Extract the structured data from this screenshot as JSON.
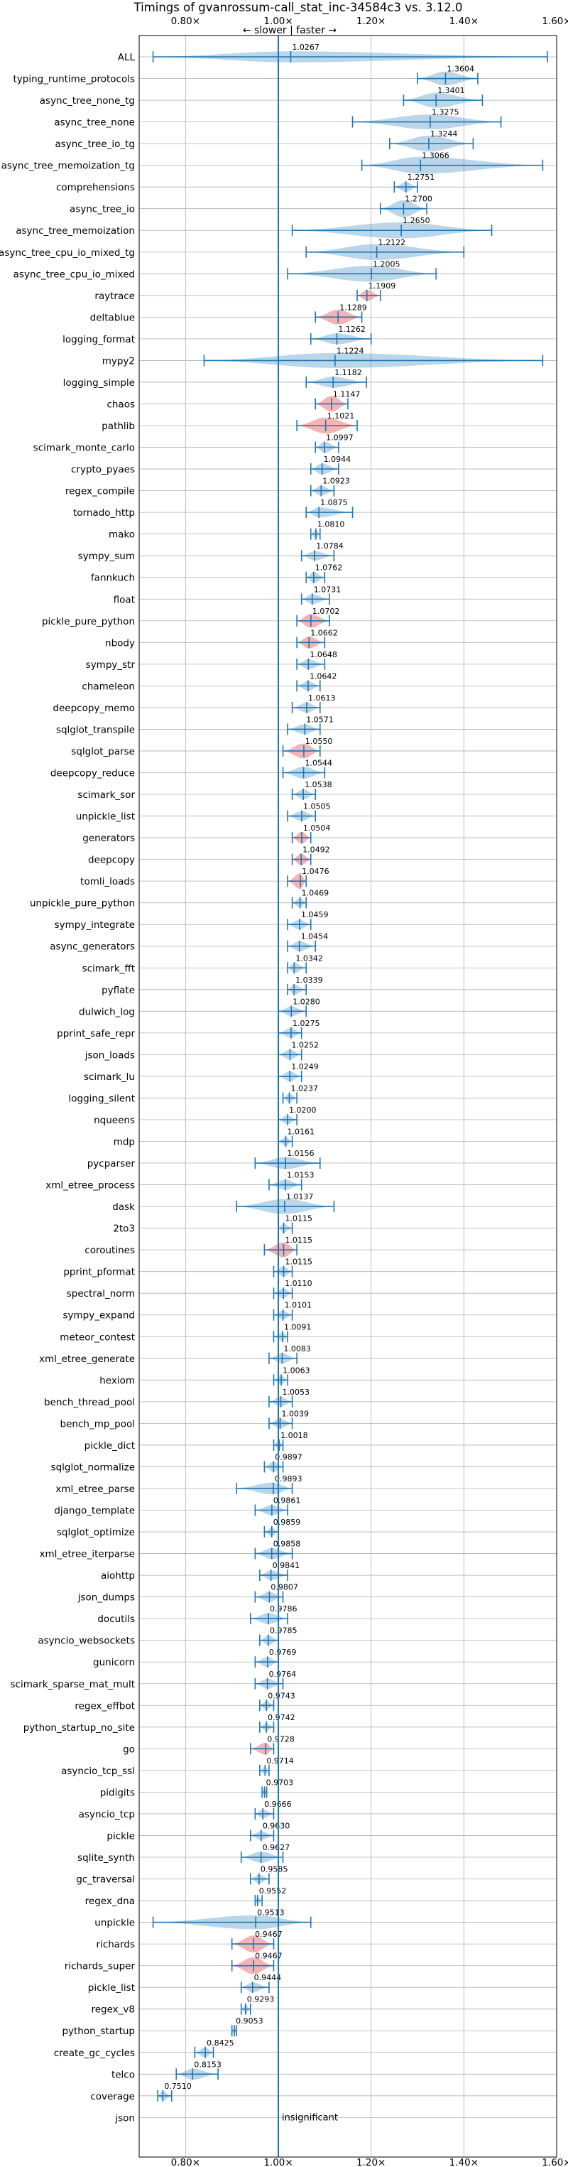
{
  "chart_data": {
    "type": "violin",
    "title": "Timings of gvanrossum-call_stat_inc-34584c3 vs. 3.12.0",
    "direction_label": "← slower | faster →",
    "xlim": [
      0.7,
      1.6
    ],
    "x_ticks": [
      0.8,
      1.0,
      1.2,
      1.4,
      1.6
    ],
    "x_tick_labels": [
      "0.80×",
      "1.00×",
      "1.20×",
      "1.40×",
      "1.60×"
    ],
    "reference_line": 1.0,
    "grid": true,
    "normal_color": "#1f77b4",
    "highlight_color": "#f08080",
    "benchmarks": [
      {
        "name": "ALL",
        "value": "1.0267",
        "mean": 1.0267,
        "min": 0.73,
        "max": 1.58,
        "width": 0.55,
        "highlight": false
      },
      {
        "name": "typing_runtime_protocols",
        "value": "1.3604",
        "mean": 1.3604,
        "min": 1.3,
        "max": 1.43,
        "width": 0.7,
        "highlight": false
      },
      {
        "name": "async_tree_none_tg",
        "value": "1.3401",
        "mean": 1.3401,
        "min": 1.27,
        "max": 1.44,
        "width": 0.75,
        "highlight": false
      },
      {
        "name": "async_tree_none",
        "value": "1.3275",
        "mean": 1.3275,
        "min": 1.16,
        "max": 1.48,
        "width": 0.75,
        "highlight": false
      },
      {
        "name": "async_tree_io_tg",
        "value": "1.3244",
        "mean": 1.3244,
        "min": 1.24,
        "max": 1.42,
        "width": 0.8,
        "highlight": false
      },
      {
        "name": "async_tree_memoization_tg",
        "value": "1.3066",
        "mean": 1.3066,
        "min": 1.18,
        "max": 1.57,
        "width": 0.85,
        "highlight": false
      },
      {
        "name": "comprehensions",
        "value": "1.2751",
        "mean": 1.2751,
        "min": 1.25,
        "max": 1.3,
        "width": 0.5,
        "highlight": false
      },
      {
        "name": "async_tree_io",
        "value": "1.2700",
        "mean": 1.27,
        "min": 1.22,
        "max": 1.32,
        "width": 0.85,
        "highlight": false
      },
      {
        "name": "async_tree_memoization",
        "value": "1.2650",
        "mean": 1.265,
        "min": 1.03,
        "max": 1.46,
        "width": 0.8,
        "highlight": false
      },
      {
        "name": "async_tree_cpu_io_mixed_tg",
        "value": "1.2122",
        "mean": 1.2122,
        "min": 1.06,
        "max": 1.4,
        "width": 0.8,
        "highlight": false
      },
      {
        "name": "async_tree_cpu_io_mixed",
        "value": "1.2005",
        "mean": 1.2005,
        "min": 1.02,
        "max": 1.34,
        "width": 0.8,
        "highlight": false
      },
      {
        "name": "raytrace",
        "value": "1.1909",
        "mean": 1.1909,
        "min": 1.17,
        "max": 1.22,
        "width": 0.55,
        "highlight": true
      },
      {
        "name": "deltablue",
        "value": "1.1289",
        "mean": 1.1289,
        "min": 1.08,
        "max": 1.18,
        "width": 0.75,
        "highlight": true
      },
      {
        "name": "logging_format",
        "value": "1.1262",
        "mean": 1.1262,
        "min": 1.07,
        "max": 1.2,
        "width": 0.55,
        "highlight": false
      },
      {
        "name": "mypy2",
        "value": "1.1224",
        "mean": 1.1224,
        "min": 0.84,
        "max": 1.57,
        "width": 0.75,
        "highlight": false
      },
      {
        "name": "logging_simple",
        "value": "1.1182",
        "mean": 1.1182,
        "min": 1.06,
        "max": 1.19,
        "width": 0.55,
        "highlight": false
      },
      {
        "name": "chaos",
        "value": "1.1147",
        "mean": 1.1147,
        "min": 1.08,
        "max": 1.15,
        "width": 0.8,
        "highlight": true
      },
      {
        "name": "pathlib",
        "value": "1.1021",
        "mean": 1.1021,
        "min": 1.04,
        "max": 1.17,
        "width": 0.8,
        "highlight": true
      },
      {
        "name": "scimark_monte_carlo",
        "value": "1.0997",
        "mean": 1.0997,
        "min": 1.08,
        "max": 1.13,
        "width": 0.55,
        "highlight": false
      },
      {
        "name": "crypto_pyaes",
        "value": "1.0944",
        "mean": 1.0944,
        "min": 1.07,
        "max": 1.13,
        "width": 0.55,
        "highlight": false
      },
      {
        "name": "regex_compile",
        "value": "1.0923",
        "mean": 1.0923,
        "min": 1.07,
        "max": 1.12,
        "width": 0.5,
        "highlight": false
      },
      {
        "name": "tornado_http",
        "value": "1.0875",
        "mean": 1.0875,
        "min": 1.06,
        "max": 1.16,
        "width": 0.5,
        "highlight": false
      },
      {
        "name": "mako",
        "value": "1.0810",
        "mean": 1.081,
        "min": 1.07,
        "max": 1.09,
        "width": 0.45,
        "highlight": false
      },
      {
        "name": "sympy_sum",
        "value": "1.0784",
        "mean": 1.0784,
        "min": 1.05,
        "max": 1.12,
        "width": 0.45,
        "highlight": false
      },
      {
        "name": "fannkuch",
        "value": "1.0762",
        "mean": 1.0762,
        "min": 1.06,
        "max": 1.1,
        "width": 0.55,
        "highlight": false
      },
      {
        "name": "float",
        "value": "1.0731",
        "mean": 1.0731,
        "min": 1.05,
        "max": 1.11,
        "width": 0.5,
        "highlight": false
      },
      {
        "name": "pickle_pure_python",
        "value": "1.0702",
        "mean": 1.0702,
        "min": 1.04,
        "max": 1.11,
        "width": 0.7,
        "highlight": true
      },
      {
        "name": "nbody",
        "value": "1.0662",
        "mean": 1.0662,
        "min": 1.04,
        "max": 1.1,
        "width": 0.6,
        "highlight": true
      },
      {
        "name": "sympy_str",
        "value": "1.0648",
        "mean": 1.0648,
        "min": 1.04,
        "max": 1.1,
        "width": 0.5,
        "highlight": false
      },
      {
        "name": "chameleon",
        "value": "1.0642",
        "mean": 1.0642,
        "min": 1.04,
        "max": 1.09,
        "width": 0.5,
        "highlight": false
      },
      {
        "name": "deepcopy_memo",
        "value": "1.0613",
        "mean": 1.0613,
        "min": 1.03,
        "max": 1.09,
        "width": 0.5,
        "highlight": false
      },
      {
        "name": "sqlglot_transpile",
        "value": "1.0571",
        "mean": 1.0571,
        "min": 1.02,
        "max": 1.09,
        "width": 0.5,
        "highlight": false
      },
      {
        "name": "sqlglot_parse",
        "value": "1.0550",
        "mean": 1.055,
        "min": 1.01,
        "max": 1.09,
        "width": 0.75,
        "highlight": true
      },
      {
        "name": "deepcopy_reduce",
        "value": "1.0544",
        "mean": 1.0544,
        "min": 1.01,
        "max": 1.1,
        "width": 0.6,
        "highlight": false
      },
      {
        "name": "scimark_sor",
        "value": "1.0538",
        "mean": 1.0538,
        "min": 1.03,
        "max": 1.08,
        "width": 0.5,
        "highlight": false
      },
      {
        "name": "unpickle_list",
        "value": "1.0505",
        "mean": 1.0505,
        "min": 1.02,
        "max": 1.08,
        "width": 0.5,
        "highlight": false
      },
      {
        "name": "generators",
        "value": "1.0504",
        "mean": 1.0504,
        "min": 1.03,
        "max": 1.07,
        "width": 0.6,
        "highlight": true
      },
      {
        "name": "deepcopy",
        "value": "1.0492",
        "mean": 1.0492,
        "min": 1.03,
        "max": 1.07,
        "width": 0.6,
        "highlight": true
      },
      {
        "name": "tomli_loads",
        "value": "1.0476",
        "mean": 1.0476,
        "min": 1.02,
        "max": 1.06,
        "width": 0.8,
        "highlight": true
      },
      {
        "name": "unpickle_pure_python",
        "value": "1.0469",
        "mean": 1.0469,
        "min": 1.03,
        "max": 1.06,
        "width": 0.5,
        "highlight": false
      },
      {
        "name": "sympy_integrate",
        "value": "1.0459",
        "mean": 1.0459,
        "min": 1.02,
        "max": 1.07,
        "width": 0.5,
        "highlight": false
      },
      {
        "name": "async_generators",
        "value": "1.0454",
        "mean": 1.0454,
        "min": 1.02,
        "max": 1.08,
        "width": 0.5,
        "highlight": false
      },
      {
        "name": "scimark_fft",
        "value": "1.0342",
        "mean": 1.0342,
        "min": 1.02,
        "max": 1.06,
        "width": 0.5,
        "highlight": false
      },
      {
        "name": "pyflate",
        "value": "1.0339",
        "mean": 1.0339,
        "min": 1.02,
        "max": 1.06,
        "width": 0.5,
        "highlight": false
      },
      {
        "name": "dulwich_log",
        "value": "1.0280",
        "mean": 1.028,
        "min": 1.0,
        "max": 1.06,
        "width": 0.5,
        "highlight": false
      },
      {
        "name": "pprint_safe_repr",
        "value": "1.0275",
        "mean": 1.0275,
        "min": 1.0,
        "max": 1.05,
        "width": 0.5,
        "highlight": false
      },
      {
        "name": "json_loads",
        "value": "1.0252",
        "mean": 1.0252,
        "min": 1.0,
        "max": 1.05,
        "width": 0.5,
        "highlight": false
      },
      {
        "name": "scimark_lu",
        "value": "1.0249",
        "mean": 1.0249,
        "min": 1.0,
        "max": 1.05,
        "width": 0.5,
        "highlight": false
      },
      {
        "name": "logging_silent",
        "value": "1.0237",
        "mean": 1.0237,
        "min": 1.01,
        "max": 1.04,
        "width": 0.45,
        "highlight": false
      },
      {
        "name": "nqueens",
        "value": "1.0200",
        "mean": 1.02,
        "min": 1.0,
        "max": 1.04,
        "width": 0.45,
        "highlight": false
      },
      {
        "name": "mdp",
        "value": "1.0161",
        "mean": 1.0161,
        "min": 1.0,
        "max": 1.03,
        "width": 0.45,
        "highlight": false
      },
      {
        "name": "pycparser",
        "value": "1.0156",
        "mean": 1.0156,
        "min": 0.95,
        "max": 1.09,
        "width": 0.6,
        "highlight": false
      },
      {
        "name": "xml_etree_process",
        "value": "1.0153",
        "mean": 1.0153,
        "min": 0.98,
        "max": 1.05,
        "width": 0.5,
        "highlight": false
      },
      {
        "name": "dask",
        "value": "1.0137",
        "mean": 1.0137,
        "min": 0.91,
        "max": 1.12,
        "width": 0.75,
        "highlight": false
      },
      {
        "name": "2to3",
        "value": "1.0115",
        "mean": 1.0115,
        "min": 1.0,
        "max": 1.03,
        "width": 0.45,
        "highlight": false
      },
      {
        "name": "coroutines",
        "value": "1.0115",
        "mean": 1.0115,
        "min": 0.97,
        "max": 1.04,
        "width": 0.75,
        "highlight": true
      },
      {
        "name": "pprint_pformat",
        "value": "1.0115",
        "mean": 1.0115,
        "min": 0.99,
        "max": 1.03,
        "width": 0.5,
        "highlight": false
      },
      {
        "name": "spectral_norm",
        "value": "1.0110",
        "mean": 1.011,
        "min": 0.99,
        "max": 1.03,
        "width": 0.5,
        "highlight": false
      },
      {
        "name": "sympy_expand",
        "value": "1.0101",
        "mean": 1.0101,
        "min": 0.99,
        "max": 1.03,
        "width": 0.45,
        "highlight": false
      },
      {
        "name": "meteor_contest",
        "value": "1.0091",
        "mean": 1.0091,
        "min": 0.99,
        "max": 1.02,
        "width": 0.45,
        "highlight": false
      },
      {
        "name": "xml_etree_generate",
        "value": "1.0083",
        "mean": 1.0083,
        "min": 0.98,
        "max": 1.04,
        "width": 0.5,
        "highlight": false
      },
      {
        "name": "hexiom",
        "value": "1.0063",
        "mean": 1.0063,
        "min": 0.99,
        "max": 1.02,
        "width": 0.45,
        "highlight": false
      },
      {
        "name": "bench_thread_pool",
        "value": "1.0053",
        "mean": 1.0053,
        "min": 0.98,
        "max": 1.03,
        "width": 0.5,
        "highlight": false
      },
      {
        "name": "bench_mp_pool",
        "value": "1.0039",
        "mean": 1.0039,
        "min": 0.98,
        "max": 1.03,
        "width": 0.5,
        "highlight": false
      },
      {
        "name": "pickle_dict",
        "value": "1.0018",
        "mean": 1.0018,
        "min": 0.99,
        "max": 1.01,
        "width": 0.45,
        "highlight": false
      },
      {
        "name": "sqlglot_normalize",
        "value": "0.9897",
        "mean": 0.9897,
        "min": 0.97,
        "max": 1.01,
        "width": 0.5,
        "highlight": false
      },
      {
        "name": "xml_etree_parse",
        "value": "0.9893",
        "mean": 0.9893,
        "min": 0.91,
        "max": 1.03,
        "width": 0.6,
        "highlight": false
      },
      {
        "name": "django_template",
        "value": "0.9861",
        "mean": 0.9861,
        "min": 0.95,
        "max": 1.02,
        "width": 0.5,
        "highlight": false
      },
      {
        "name": "sqlglot_optimize",
        "value": "0.9859",
        "mean": 0.9859,
        "min": 0.97,
        "max": 1.0,
        "width": 0.45,
        "highlight": false
      },
      {
        "name": "xml_etree_iterparse",
        "value": "0.9858",
        "mean": 0.9858,
        "min": 0.95,
        "max": 1.03,
        "width": 0.55,
        "highlight": false
      },
      {
        "name": "aiohttp",
        "value": "0.9841",
        "mean": 0.9841,
        "min": 0.96,
        "max": 1.02,
        "width": 0.5,
        "highlight": false
      },
      {
        "name": "json_dumps",
        "value": "0.9807",
        "mean": 0.9807,
        "min": 0.95,
        "max": 1.01,
        "width": 0.5,
        "highlight": false
      },
      {
        "name": "docutils",
        "value": "0.9786",
        "mean": 0.9786,
        "min": 0.94,
        "max": 1.02,
        "width": 0.55,
        "highlight": false
      },
      {
        "name": "asyncio_websockets",
        "value": "0.9785",
        "mean": 0.9785,
        "min": 0.96,
        "max": 1.0,
        "width": 0.5,
        "highlight": false
      },
      {
        "name": "gunicorn",
        "value": "0.9769",
        "mean": 0.9769,
        "min": 0.95,
        "max": 1.0,
        "width": 0.5,
        "highlight": false
      },
      {
        "name": "scimark_sparse_mat_mult",
        "value": "0.9764",
        "mean": 0.9764,
        "min": 0.95,
        "max": 1.01,
        "width": 0.5,
        "highlight": false
      },
      {
        "name": "regex_effbot",
        "value": "0.9743",
        "mean": 0.9743,
        "min": 0.96,
        "max": 0.99,
        "width": 0.45,
        "highlight": false
      },
      {
        "name": "python_startup_no_site",
        "value": "0.9742",
        "mean": 0.9742,
        "min": 0.96,
        "max": 0.99,
        "width": 0.4,
        "highlight": false
      },
      {
        "name": "go",
        "value": "0.9728",
        "mean": 0.9728,
        "min": 0.94,
        "max": 0.99,
        "width": 0.6,
        "highlight": true
      },
      {
        "name": "asyncio_tcp_ssl",
        "value": "0.9714",
        "mean": 0.9714,
        "min": 0.96,
        "max": 0.98,
        "width": 0.4,
        "highlight": false
      },
      {
        "name": "pidigits",
        "value": "0.9703",
        "mean": 0.9703,
        "min": 0.965,
        "max": 0.975,
        "width": 0.4,
        "highlight": false
      },
      {
        "name": "asyncio_tcp",
        "value": "0.9666",
        "mean": 0.9666,
        "min": 0.95,
        "max": 0.99,
        "width": 0.45,
        "highlight": false
      },
      {
        "name": "pickle",
        "value": "0.9630",
        "mean": 0.963,
        "min": 0.94,
        "max": 0.99,
        "width": 0.45,
        "highlight": false
      },
      {
        "name": "sqlite_synth",
        "value": "0.9627",
        "mean": 0.9627,
        "min": 0.92,
        "max": 1.01,
        "width": 0.55,
        "highlight": false
      },
      {
        "name": "gc_traversal",
        "value": "0.9585",
        "mean": 0.9585,
        "min": 0.94,
        "max": 0.98,
        "width": 0.45,
        "highlight": false
      },
      {
        "name": "regex_dna",
        "value": "0.9552",
        "mean": 0.9552,
        "min": 0.95,
        "max": 0.965,
        "width": 0.4,
        "highlight": false
      },
      {
        "name": "unpickle",
        "value": "0.9513",
        "mean": 0.9513,
        "min": 0.73,
        "max": 1.07,
        "width": 0.7,
        "highlight": false
      },
      {
        "name": "richards",
        "value": "0.9467",
        "mean": 0.9467,
        "min": 0.9,
        "max": 0.99,
        "width": 0.85,
        "highlight": true
      },
      {
        "name": "richards_super",
        "value": "0.9467",
        "mean": 0.9467,
        "min": 0.9,
        "max": 0.99,
        "width": 0.85,
        "highlight": true
      },
      {
        "name": "pickle_list",
        "value": "0.9444",
        "mean": 0.9444,
        "min": 0.92,
        "max": 0.98,
        "width": 0.5,
        "highlight": false
      },
      {
        "name": "regex_v8",
        "value": "0.9293",
        "mean": 0.9293,
        "min": 0.92,
        "max": 0.94,
        "width": 0.45,
        "highlight": false
      },
      {
        "name": "python_startup",
        "value": "0.9053",
        "mean": 0.9053,
        "min": 0.9,
        "max": 0.91,
        "width": 0.35,
        "highlight": false
      },
      {
        "name": "create_gc_cycles",
        "value": "0.8425",
        "mean": 0.8425,
        "min": 0.82,
        "max": 0.86,
        "width": 0.5,
        "highlight": false
      },
      {
        "name": "telco",
        "value": "0.8153",
        "mean": 0.8153,
        "min": 0.78,
        "max": 0.87,
        "width": 0.55,
        "highlight": false
      },
      {
        "name": "coverage",
        "value": "0.7510",
        "mean": 0.751,
        "min": 0.74,
        "max": 0.77,
        "width": 0.5,
        "highlight": false
      },
      {
        "name": "json",
        "value": "",
        "mean": null,
        "min": null,
        "max": null,
        "width": 0,
        "highlight": false,
        "note": "insignificant"
      }
    ]
  }
}
